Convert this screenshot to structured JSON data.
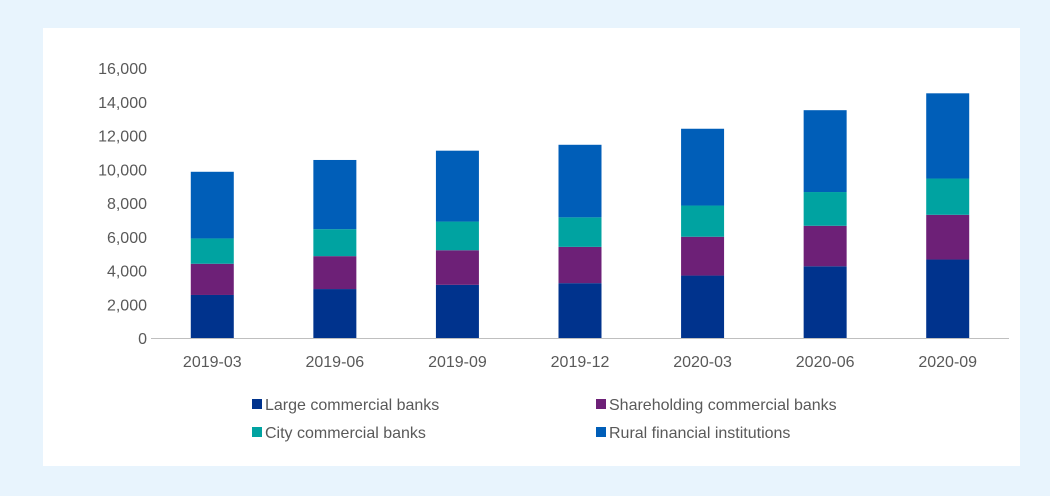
{
  "chart_data": {
    "type": "bar",
    "stacked": true,
    "categories": [
      "2019-03",
      "2019-06",
      "2019-09",
      "2019-12",
      "2020-03",
      "2020-06",
      "2020-09"
    ],
    "series": [
      {
        "name": "Large commercial banks",
        "color": "#00338d",
        "values": [
          2550,
          2900,
          3150,
          3250,
          3700,
          4250,
          4650
        ]
      },
      {
        "name": "Shareholding commercial banks",
        "color": "#6d2077",
        "values": [
          1850,
          1950,
          2050,
          2150,
          2300,
          2400,
          2650
        ]
      },
      {
        "name": "City commercial banks",
        "color": "#00a3a1",
        "values": [
          1500,
          1600,
          1700,
          1750,
          1850,
          2000,
          2150
        ]
      },
      {
        "name": "Rural financial institutions",
        "color": "#005eb8",
        "values": [
          3950,
          4100,
          4200,
          4300,
          4550,
          4850,
          5050
        ]
      }
    ],
    "y_ticks": [
      "0",
      "2,000",
      "4,000",
      "6,000",
      "8,000",
      "10,000",
      "12,000",
      "14,000",
      "16,000"
    ],
    "ylim": [
      0,
      16000
    ],
    "y_gridlines": false,
    "legend_position": "bottom",
    "title": "",
    "xlabel": "",
    "ylabel": ""
  },
  "colors": {
    "page_background": "#e8f4fd",
    "panel_background": "#ffffff",
    "axis": "#bfbfbf",
    "text": "#595959"
  }
}
